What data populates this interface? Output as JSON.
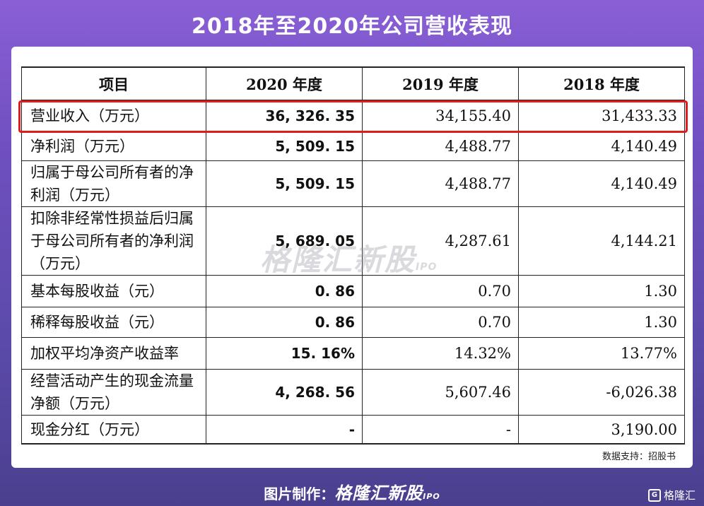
{
  "title": "2018年至2020年公司营收表现",
  "table": {
    "headers": [
      "项目",
      "2020 年度",
      "2019 年度",
      "2018 年度"
    ],
    "rows": [
      {
        "item": "营业收入（万元）",
        "v2020": "36, 326. 35",
        "v2019": "34,155.40",
        "v2018": "31,433.33"
      },
      {
        "item": "净利润（万元）",
        "v2020": "5, 509. 15",
        "v2019": "4,488.77",
        "v2018": "4,140.49"
      },
      {
        "item": "归属于母公司所有者的净利润（万元）",
        "v2020": "5, 509. 15",
        "v2019": "4,488.77",
        "v2018": "4,140.49"
      },
      {
        "item": "扣除非经常性损益后归属于母公司所有者的净利润（万元）",
        "v2020": "5, 689. 05",
        "v2019": "4,287.61",
        "v2018": "4,144.21"
      },
      {
        "item": "基本每股收益（元）",
        "v2020": "0. 86",
        "v2019": "0.70",
        "v2018": "1.30"
      },
      {
        "item": "稀释每股收益（元）",
        "v2020": "0. 86",
        "v2019": "0.70",
        "v2018": "1.30"
      },
      {
        "item": "加权平均净资产收益率",
        "v2020": "15. 16%",
        "v2019": "14.32%",
        "v2018": "13.77%"
      },
      {
        "item": "经营活动产生的现金流量净额（万元）",
        "v2020": "4, 268. 56",
        "v2019": "5,607.46",
        "v2018": "-6,026.38"
      },
      {
        "item": "现金分红（万元）",
        "v2020": "-",
        "v2019": "-",
        "v2018": "3,190.00"
      }
    ]
  },
  "watermark": {
    "text": "格隆汇新股",
    "sub": "IPO"
  },
  "source": "数据支持：招股书",
  "footer": {
    "prefix": "图片制作：",
    "brand": "格隆汇新股",
    "brand_sub": "IPO"
  },
  "corner_logo": {
    "icon": "G",
    "text": "格隆汇"
  },
  "colors": {
    "highlight": "#e01c1c",
    "background": "#6f4fbf"
  }
}
